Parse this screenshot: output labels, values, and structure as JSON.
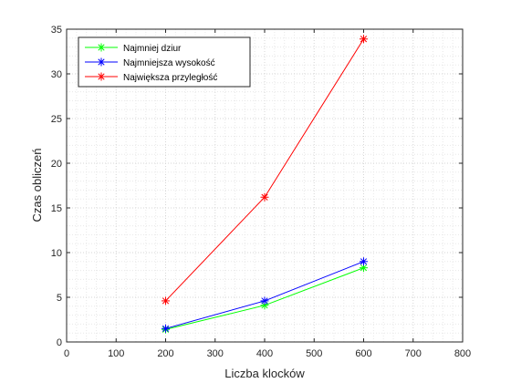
{
  "chart_data": {
    "type": "line",
    "xlabel": "Liczba klocków",
    "ylabel": "Czas obliczeń",
    "xlim": [
      0,
      800
    ],
    "ylim": [
      0,
      35
    ],
    "xticks": [
      0,
      100,
      200,
      300,
      400,
      500,
      600,
      700,
      800
    ],
    "yticks": [
      0,
      5,
      10,
      15,
      20,
      25,
      30,
      35
    ],
    "grid": "minor-dotted",
    "legend_position": "top-left",
    "x": [
      200,
      400,
      600
    ],
    "series": [
      {
        "name": "Najmniej dziur",
        "values": [
          1.4,
          4.1,
          8.3
        ],
        "color": "#00ff00",
        "marker": "asterisk"
      },
      {
        "name": "Najmniejsza wysokość",
        "values": [
          1.5,
          4.6,
          9.0
        ],
        "color": "#0000ff",
        "marker": "asterisk"
      },
      {
        "name": "Największa przyległość",
        "values": [
          4.6,
          16.2,
          33.9
        ],
        "color": "#ff0000",
        "marker": "asterisk"
      }
    ]
  }
}
